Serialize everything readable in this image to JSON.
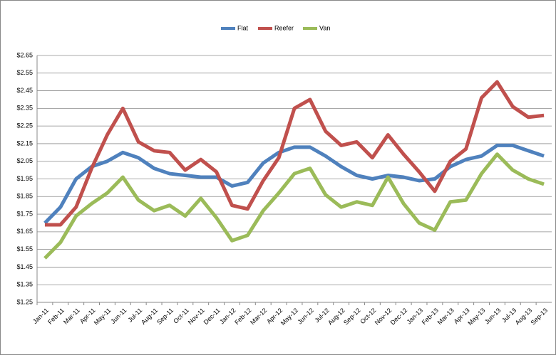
{
  "chart_data": {
    "type": "line",
    "categories": [
      "Jan-11",
      "Feb-11",
      "Mar-11",
      "Apr-11",
      "May-11",
      "Jun-11",
      "Jul-11",
      "Aug-11",
      "Sep-11",
      "Oct-11",
      "Nov-11",
      "Dec-11",
      "Jan-12",
      "Feb-12",
      "Mar-12",
      "Apr-12",
      "May-12",
      "Jun-12",
      "Jul-12",
      "Aug-12",
      "Sep-12",
      "Oct-12",
      "Nov-12",
      "Dec-12",
      "Jan-13",
      "Feb-13",
      "Mar-13",
      "Apr-13",
      "May-13",
      "Jun-13",
      "Jul-13",
      "Aug-13",
      "Sep-13"
    ],
    "series": [
      {
        "name": "Flat",
        "color": "#4f81bd",
        "values": [
          1.7,
          1.79,
          1.95,
          2.02,
          2.05,
          2.1,
          2.07,
          2.01,
          1.98,
          1.97,
          1.96,
          1.96,
          1.91,
          1.93,
          2.04,
          2.1,
          2.13,
          2.13,
          2.08,
          2.02,
          1.97,
          1.95,
          1.97,
          1.96,
          1.94,
          1.95,
          2.02,
          2.06,
          2.08,
          2.14,
          2.14,
          2.11,
          2.08
        ]
      },
      {
        "name": "Reefer",
        "color": "#c0504d",
        "values": [
          1.69,
          1.69,
          1.79,
          2.01,
          2.2,
          2.35,
          2.16,
          2.11,
          2.1,
          2.0,
          2.06,
          1.99,
          1.8,
          1.78,
          1.94,
          2.07,
          2.35,
          2.4,
          2.22,
          2.14,
          2.16,
          2.07,
          2.2,
          2.09,
          1.99,
          1.88,
          2.05,
          2.12,
          2.41,
          2.5,
          2.36,
          2.3,
          2.31
        ]
      },
      {
        "name": "Van",
        "color": "#9bbb59",
        "values": [
          1.5,
          1.59,
          1.74,
          1.81,
          1.87,
          1.96,
          1.83,
          1.77,
          1.8,
          1.74,
          1.84,
          1.73,
          1.6,
          1.63,
          1.77,
          1.87,
          1.98,
          2.01,
          1.86,
          1.79,
          1.82,
          1.8,
          1.96,
          1.81,
          1.7,
          1.66,
          1.82,
          1.83,
          1.98,
          2.09,
          2.0,
          1.95,
          1.92
        ]
      }
    ],
    "ylim": [
      1.25,
      2.65
    ],
    "yticks": [
      {
        "value": 1.25,
        "label": "$1.25"
      },
      {
        "value": 1.35,
        "label": "$1.35"
      },
      {
        "value": 1.45,
        "label": "$1.45"
      },
      {
        "value": 1.55,
        "label": "$1.55"
      },
      {
        "value": 1.65,
        "label": "$1.65"
      },
      {
        "value": 1.75,
        "label": "$1.75"
      },
      {
        "value": 1.85,
        "label": "$1.85"
      },
      {
        "value": 1.95,
        "label": "$1.95"
      },
      {
        "value": 2.05,
        "label": "$2.05"
      },
      {
        "value": 2.15,
        "label": "$2.15"
      },
      {
        "value": 2.25,
        "label": "$2.25"
      },
      {
        "value": 2.35,
        "label": "$2.35"
      },
      {
        "value": 2.45,
        "label": "$2.45"
      },
      {
        "value": 2.55,
        "label": "$2.55"
      },
      {
        "value": 2.65,
        "label": "$2.65"
      }
    ],
    "grid": true,
    "legend": "top"
  }
}
